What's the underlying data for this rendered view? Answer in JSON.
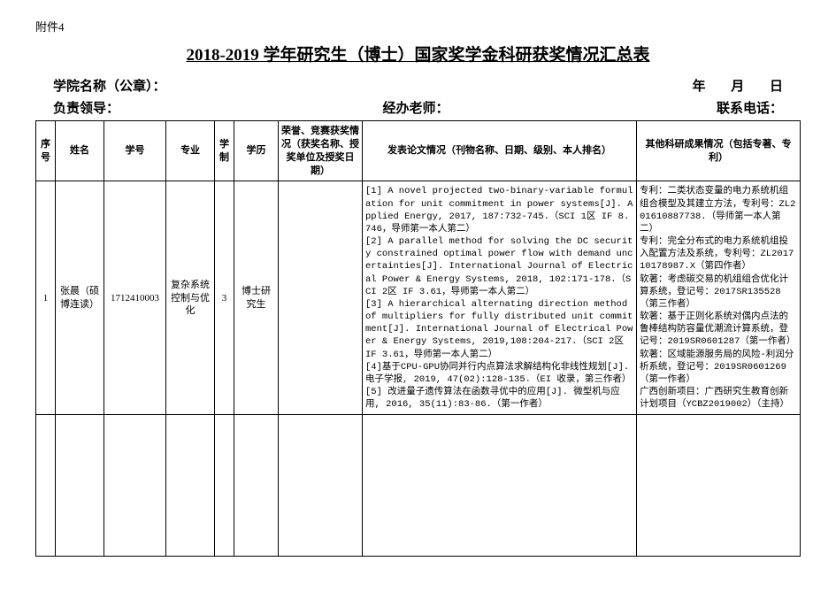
{
  "attachment_label": "附件4",
  "title": "2018-2019 学年研究生（博士）国家奖学金科研获奖情况汇总表",
  "meta": {
    "school_label": "学院名称（公章）：",
    "leader_label": "负责领导：",
    "teacher_label": "经办老师：",
    "phone_label": "联系电话：",
    "year_label": "年",
    "month_label": "月",
    "day_label": "日"
  },
  "headers": {
    "seq": "序号",
    "name": "姓名",
    "student_id": "学号",
    "major": "专业",
    "system": "学制",
    "education": "学历",
    "honor": "荣誉、竞赛获奖情况（获奖名称、授奖单位及授奖日期）",
    "papers": "发表论文情况（刊物名称、日期、级别、本人排名）",
    "other": "其他科研成果情况（包括专著、专利）"
  },
  "rows": [
    {
      "seq": "1",
      "name": "张晨（硕博连读）",
      "student_id": "1712410003",
      "major": "复杂系统控制与优化",
      "system": "3",
      "education": "博士研究生",
      "honor": "",
      "papers": "[1] A novel projected two-binary-variable formulation for unit commitment in power systems[J]. Applied Energy, 2017, 187:732-745.（SCI 1区 IF 8.746，导师第一本人第二）\n[2] A parallel method for solving the DC security constrained optimal power flow with demand uncertainties[J]. International Journal of Electrical Power & Energy Systems, 2018, 102:171-178.（SCI 2区 IF 3.61，导师第一本人第二）\n[3] A hierarchical alternating direction method of multipliers for fully distributed unit commitment[J]. International Journal of Electrical Power & Energy Systems, 2019,108:204-217.（SCI 2区 IF 3.61，导师第一本人第二）\n[4]基于CPU-GPU协同并行内点算法求解结构化非线性规划[J]. 电子学报, 2019, 47(02):128-135.（EI 收录，第三作者）\n[5] 改进量子遗传算法在函数寻优中的应用[J]. 微型机与应用, 2016, 35(11):83-86.（第一作者）",
      "other": "专利：二类状态变量的电力系统机组组合模型及其建立方法，专利号：ZL201610887738.（导师第一本人第二）\n专利：完全分布式的电力系统机组投入配置方法及系统，专利号：ZL201710178987.X（第四作者）\n软著：考虑碳交易的机组组合优化计算系统，登记号：2017SR135528（第三作者）\n软著：基于正则化系统对偶内点法的鲁棒结构防容量优潮流计算系统，登记号：2019SR0601287（第一作者）\n软著：区域能源服务局的风险-利润分析系统，登记号：2019SR0601269（第一作者）\n广西创新项目：广西研究生教育创新计划项目（YCBZ2019002）（主持）"
    }
  ]
}
